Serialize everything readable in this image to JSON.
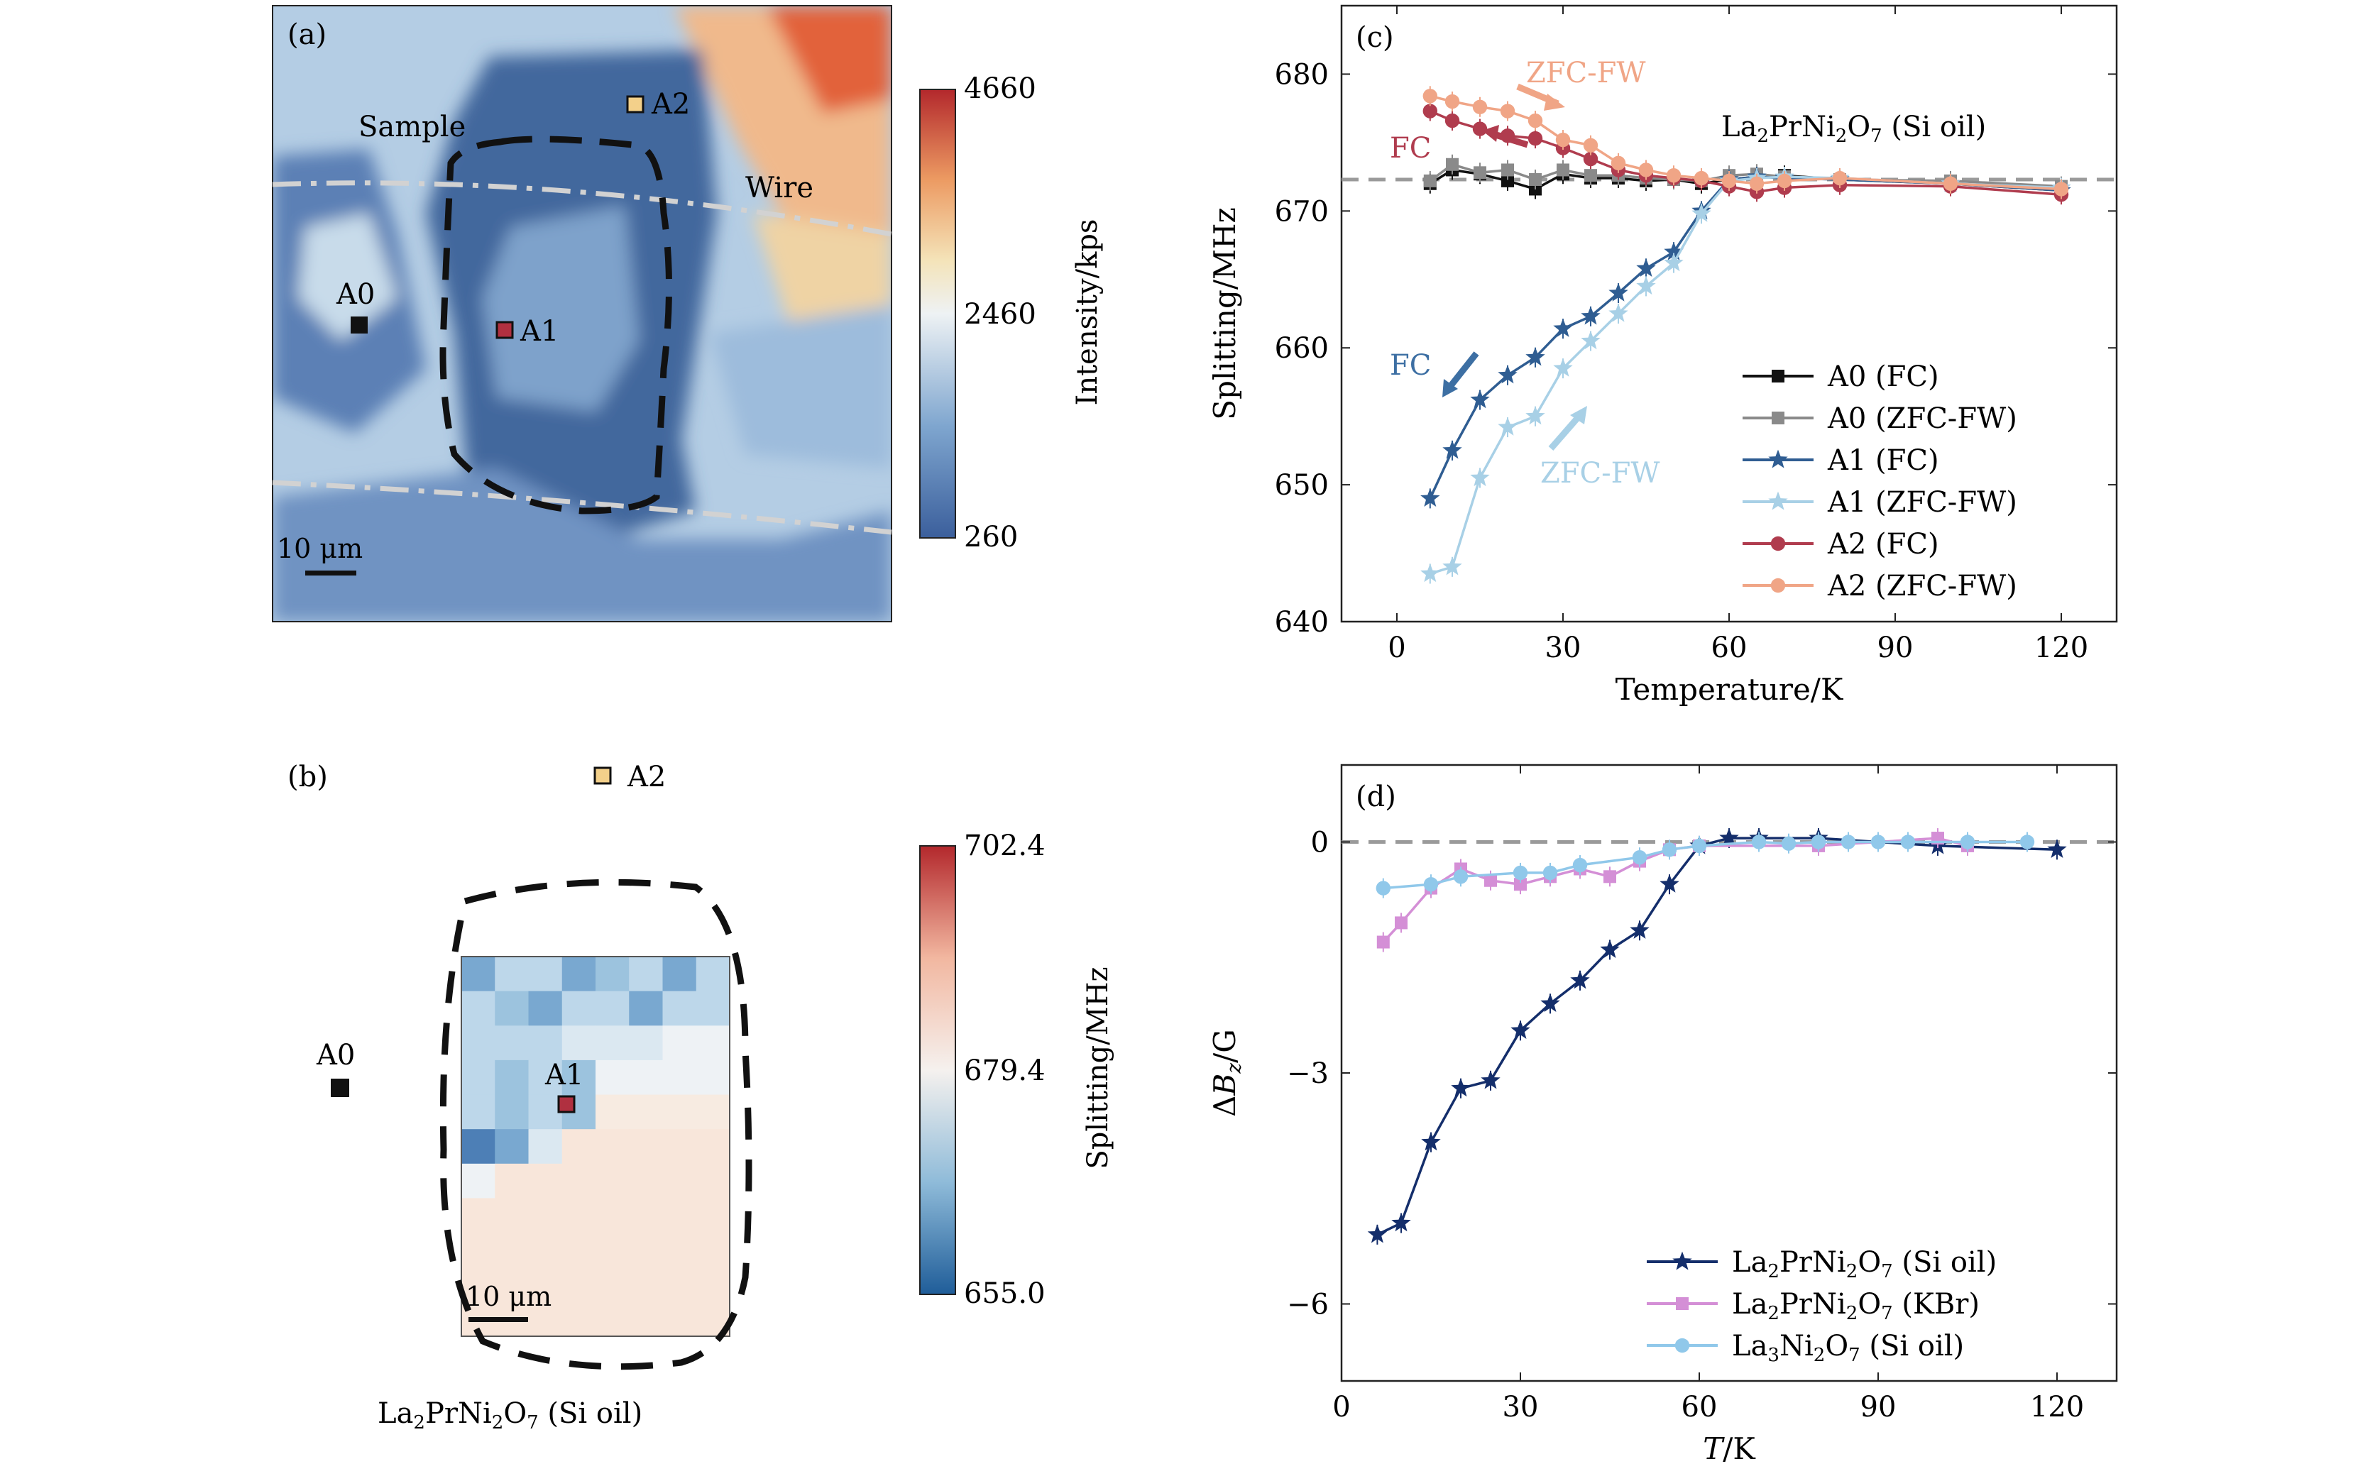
{
  "panels": {
    "a": {
      "label": "(a)",
      "annotations": [
        "Sample",
        "Wire"
      ],
      "markers": [
        {
          "name": "A0",
          "color": "#111111"
        },
        {
          "name": "A1",
          "color": "#b03040"
        },
        {
          "name": "A2",
          "color": "#f3d08a"
        }
      ],
      "scalebar": "10 μm",
      "colorbar": {
        "label": "Intensity/kps",
        "ticks": [
          "4660",
          "2460",
          "260"
        ]
      }
    },
    "b": {
      "label": "(b)",
      "markers": [
        {
          "name": "A0",
          "color": "#111111"
        },
        {
          "name": "A1",
          "color": "#b03040"
        },
        {
          "name": "A2",
          "color": "#f3d08a"
        }
      ],
      "scalebar": "10 μm",
      "caption": "La2PrNi2O7 (Si oil)",
      "colorbar": {
        "label": "Splitting/MHz",
        "ticks": [
          "702.4",
          "679.4",
          "655.0"
        ]
      }
    }
  },
  "chart_data": [
    {
      "panel": "(c)",
      "type": "line",
      "xlabel": "Temperature/K",
      "ylabel": "Splitting/MHz",
      "xlim": [
        -10,
        130
      ],
      "ylim": [
        640,
        685
      ],
      "xticks": [
        0,
        30,
        60,
        90,
        120
      ],
      "yticks": [
        640,
        650,
        660,
        670,
        680
      ],
      "reference_line": 672.3,
      "annotation_text": "La2PrNi2O7 (Si oil)",
      "arrow_labels": [
        {
          "text": "ZFC-FW",
          "color": "#f0a586"
        },
        {
          "text": "FC",
          "color": "#b03c4e"
        },
        {
          "text": "FC",
          "color": "#3d6fa3"
        },
        {
          "text": "ZFC-FW",
          "color": "#a8d0e6"
        }
      ],
      "legend_position": "lower-right",
      "series": [
        {
          "name": "A0 (FC)",
          "color": "#111111",
          "marker": "square",
          "x": [
            6,
            10,
            15,
            20,
            25,
            30,
            35,
            40,
            45,
            50,
            55,
            60,
            65,
            70,
            80,
            100,
            120
          ],
          "y": [
            672.0,
            673.0,
            672.7,
            672.2,
            671.6,
            672.7,
            672.4,
            672.4,
            672.2,
            672.3,
            672.0,
            672.3,
            672.5,
            672.6,
            672.3,
            672.0,
            671.5
          ]
        },
        {
          "name": "A0 (ZFC-FW)",
          "color": "#8a8a8a",
          "marker": "square",
          "x": [
            6,
            10,
            15,
            20,
            25,
            30,
            35,
            40,
            45,
            50,
            55,
            60,
            65,
            70,
            80,
            100,
            120
          ],
          "y": [
            672.2,
            673.4,
            672.8,
            673.0,
            672.3,
            673.0,
            672.6,
            672.6,
            672.4,
            672.3,
            672.2,
            672.6,
            672.7,
            672.5,
            672.3,
            672.2,
            671.8
          ]
        },
        {
          "name": "A1 (FC)",
          "color": "#2f5d92",
          "marker": "star",
          "x": [
            6,
            10,
            15,
            20,
            25,
            30,
            35,
            40,
            45,
            50,
            55,
            60,
            65,
            70,
            80,
            100,
            120
          ],
          "y": [
            649.0,
            652.5,
            656.2,
            658.0,
            659.3,
            661.4,
            662.3,
            664.0,
            665.8,
            667.0,
            670.0,
            672.3,
            672.5,
            672.4,
            672.3,
            672.0,
            671.5
          ]
        },
        {
          "name": "A1 (ZFC-FW)",
          "color": "#a8d0e6",
          "marker": "star",
          "x": [
            6,
            10,
            15,
            20,
            25,
            30,
            35,
            40,
            45,
            50,
            55,
            60,
            65,
            70,
            80,
            100,
            120
          ],
          "y": [
            643.5,
            644.0,
            650.5,
            654.2,
            655.0,
            658.5,
            660.5,
            662.5,
            664.5,
            666.2,
            669.8,
            672.2,
            672.4,
            672.5,
            672.4,
            672.0,
            671.7
          ]
        },
        {
          "name": "A2 (FC)",
          "color": "#b03c4e",
          "marker": "circle",
          "x": [
            6,
            10,
            15,
            20,
            25,
            30,
            35,
            40,
            45,
            50,
            55,
            60,
            65,
            70,
            80,
            100,
            120
          ],
          "y": [
            677.3,
            676.6,
            676.0,
            675.5,
            675.3,
            674.6,
            673.8,
            673.0,
            672.6,
            672.4,
            672.2,
            671.8,
            671.4,
            671.7,
            671.9,
            671.8,
            671.2
          ]
        },
        {
          "name": "A2 (ZFC-FW)",
          "color": "#f0a586",
          "marker": "circle",
          "x": [
            6,
            10,
            15,
            20,
            25,
            30,
            35,
            40,
            45,
            50,
            55,
            60,
            65,
            70,
            80,
            100,
            120
          ],
          "y": [
            678.4,
            678.0,
            677.6,
            677.3,
            676.6,
            675.2,
            674.8,
            673.5,
            673.0,
            672.6,
            672.4,
            672.2,
            672.0,
            672.2,
            672.4,
            672.0,
            671.6
          ]
        }
      ]
    },
    {
      "panel": "(d)",
      "type": "line",
      "xlabel": "T/K",
      "ylabel": "ΔBz/G",
      "xlim": [
        0,
        130
      ],
      "ylim": [
        -7,
        1
      ],
      "xticks": [
        0,
        30,
        60,
        90,
        120
      ],
      "yticks": [
        0,
        -3,
        -6
      ],
      "ytick_labels": [
        "0",
        "−3",
        "−6"
      ],
      "reference_line": 0,
      "legend_position": "lower-right",
      "series": [
        {
          "name": "La2PrNi2O7 (Si oil)",
          "color": "#142e6b",
          "marker": "star",
          "x": [
            6,
            10,
            15,
            20,
            25,
            30,
            35,
            40,
            45,
            50,
            55,
            60,
            65,
            70,
            80,
            100,
            120
          ],
          "y": [
            -5.1,
            -4.95,
            -3.9,
            -3.2,
            -3.1,
            -2.45,
            -2.1,
            -1.8,
            -1.4,
            -1.15,
            -0.55,
            -0.05,
            0.05,
            0.05,
            0.05,
            -0.05,
            -0.1
          ]
        },
        {
          "name": "La2PrNi2O7 (KBr)",
          "color": "#d48fd6",
          "marker": "square",
          "x": [
            7,
            10,
            15,
            20,
            25,
            30,
            35,
            40,
            45,
            50,
            55,
            60,
            80,
            100,
            105
          ],
          "y": [
            -1.3,
            -1.05,
            -0.6,
            -0.35,
            -0.5,
            -0.55,
            -0.45,
            -0.35,
            -0.45,
            -0.25,
            -0.1,
            -0.05,
            -0.05,
            0.05,
            -0.05
          ]
        },
        {
          "name": "La3Ni2O7 (Si oil)",
          "color": "#90c8ea",
          "marker": "circle",
          "x": [
            7,
            15,
            20,
            30,
            35,
            40,
            50,
            55,
            60,
            70,
            75,
            80,
            85,
            90,
            95,
            105,
            115
          ],
          "y": [
            -0.6,
            -0.55,
            -0.45,
            -0.4,
            -0.4,
            -0.3,
            -0.2,
            -0.1,
            -0.05,
            0.0,
            -0.02,
            0.0,
            0.0,
            0.0,
            0.0,
            0.0,
            0.0
          ]
        }
      ]
    }
  ]
}
